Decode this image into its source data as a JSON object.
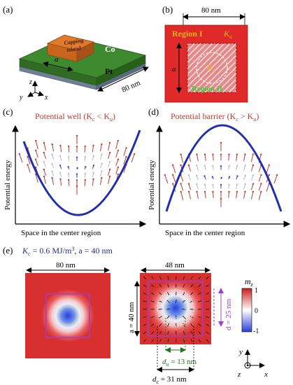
{
  "panels": {
    "a": {
      "label": "(a)",
      "island_line1": "Capping",
      "island_line2": "island",
      "co_label": "Co",
      "pt_label": "Pt",
      "a_label": "a",
      "size_label": "80 nm",
      "axes": {
        "z": "z",
        "y": "y",
        "x": "x"
      }
    },
    "b": {
      "label": "(b)",
      "width_label": "80 nm",
      "region1_label": "Region I",
      "region2_label": "Region II",
      "ku_label": "K",
      "ku_sub": "u",
      "kc_label": "K",
      "kc_sub": "c",
      "a_label": "a"
    },
    "c": {
      "label": "(c)",
      "title": "Potential well (K",
      "title_mid": " < K",
      "title_end": ")",
      "sub_c": "c",
      "sub_u": "u",
      "ylabel": "Potential energy",
      "xlabel": "Space in the center region"
    },
    "d": {
      "label": "(d)",
      "title": "Potential barrier (K",
      "title_mid": " > K",
      "title_end": ")",
      "sub_c": "c",
      "sub_u": "u",
      "ylabel": "Potential energy",
      "xlabel": "Space in the center region"
    },
    "e": {
      "label": "(e)",
      "params_k": "K",
      "params_sub": "c",
      "params_rest": " = 0.6 MJ/m",
      "params_sup": "3",
      "params_tail": ", a = 40 nm",
      "left_width_label": "80 nm",
      "right_width_label": "48 nm",
      "a_label": "a = 40 nm",
      "d_label": "d = 25 nm",
      "du_label": "d",
      "du_sub": "u",
      "du_value": " = 13 nm",
      "dc_label": "d",
      "dc_sub": "c",
      "dc_value": " = 31 nm",
      "colorbar_title": "m",
      "colorbar_sub": "z",
      "colorbar_ticks": [
        "1",
        "0",
        "-1"
      ],
      "axes": {
        "y": "y",
        "z": "z",
        "x": "x"
      }
    }
  },
  "colors": {
    "co_layer": "#3f8a2e",
    "pt_layer": "#8fa0b5",
    "island": "#e07a2a",
    "region_red": "#e02a2a",
    "region_label": "#f2b21b",
    "title_red": "#c0392b",
    "curve_blue": "#1f2fb0",
    "frame_purple": "#9b3fd0",
    "dim_green": "#1a7a1a",
    "dim_purple": "#a040d0",
    "params_blue": "#1d2f9e"
  }
}
